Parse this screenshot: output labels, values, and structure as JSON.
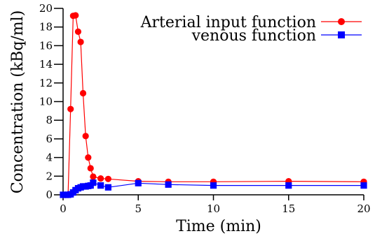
{
  "chart_data": {
    "type": "line",
    "xlabel": "Time (min)",
    "ylabel": "Concentration (kBq/ml)",
    "xlim": [
      0,
      20
    ],
    "ylim": [
      0,
      20
    ],
    "x_ticks": [
      0,
      5,
      10,
      15,
      20
    ],
    "y_ticks": [
      0,
      2,
      4,
      6,
      8,
      10,
      12,
      14,
      16,
      18,
      20
    ],
    "grid": false,
    "legend_position": "top-right",
    "series": [
      {
        "name": "Arterial input function",
        "color": "#ff0000",
        "marker": "circle",
        "x": [
          0,
          0.17,
          0.33,
          0.5,
          0.67,
          0.83,
          1.0,
          1.17,
          1.33,
          1.5,
          1.67,
          1.83,
          2.0,
          2.5,
          3.0,
          5.0,
          7.0,
          10.0,
          15.0,
          20.0
        ],
        "y": [
          0,
          0,
          0,
          9.2,
          19.2,
          19.25,
          17.5,
          16.4,
          10.9,
          6.3,
          4.0,
          2.85,
          1.95,
          1.75,
          1.7,
          1.45,
          1.4,
          1.4,
          1.45,
          1.4
        ]
      },
      {
        "name": "venous function",
        "color": "#0000ff",
        "marker": "square",
        "x": [
          0,
          0.17,
          0.33,
          0.5,
          0.67,
          0.83,
          1.0,
          1.17,
          1.33,
          1.5,
          1.67,
          1.83,
          2.0,
          2.5,
          3.0,
          5.0,
          7.0,
          10.0,
          15.0,
          20.0
        ],
        "y": [
          0,
          0,
          0,
          0.05,
          0.25,
          0.5,
          0.7,
          0.8,
          0.9,
          0.9,
          0.95,
          1.0,
          1.3,
          1.0,
          0.8,
          1.25,
          1.1,
          1.0,
          1.0,
          1.0
        ]
      }
    ]
  }
}
